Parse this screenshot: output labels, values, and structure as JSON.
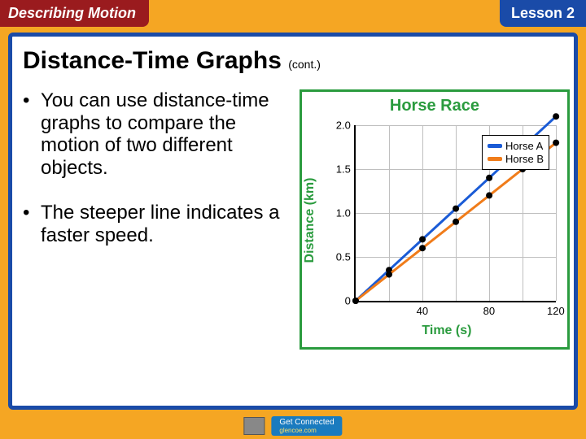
{
  "header": {
    "chapter_badge": "Describing Motion",
    "lesson_badge": "Lesson 2"
  },
  "slide": {
    "title": "Distance-Time Graphs",
    "title_suffix": "(cont.)",
    "bullets": [
      "You can use distance-time graphs to compare the motion of two different objects.",
      "The steeper line indicates a faster speed."
    ]
  },
  "chart": {
    "type": "line",
    "title": "Horse Race",
    "x_label": "Time (s)",
    "y_label": "Distance (km)",
    "xlim": [
      0,
      120
    ],
    "ylim": [
      0,
      2.0
    ],
    "x_ticks": [
      40,
      80,
      120
    ],
    "y_ticks": [
      0,
      0.5,
      1.0,
      1.5,
      2.0
    ],
    "grid_x": [
      20,
      40,
      60,
      80,
      100,
      120
    ],
    "grid_y": [
      0.5,
      1.0,
      1.5,
      2.0
    ],
    "grid_color": "#bfbfbf",
    "background_color": "#ffffff",
    "point_radius": 4,
    "line_width": 3,
    "series": [
      {
        "name": "Horse A",
        "color": "#1a5bd6",
        "points": [
          [
            0,
            0
          ],
          [
            20,
            0.35
          ],
          [
            40,
            0.7
          ],
          [
            60,
            1.05
          ],
          [
            80,
            1.4
          ],
          [
            100,
            1.75
          ],
          [
            120,
            2.1
          ]
        ]
      },
      {
        "name": "Horse B",
        "color": "#f07c1a",
        "points": [
          [
            0,
            0
          ],
          [
            20,
            0.3
          ],
          [
            40,
            0.6
          ],
          [
            60,
            0.9
          ],
          [
            80,
            1.2
          ],
          [
            100,
            1.5
          ],
          [
            120,
            1.8
          ]
        ]
      }
    ],
    "legend": {
      "position": "top-right",
      "items": [
        "Horse A",
        "Horse B"
      ]
    }
  },
  "footer": {
    "connect_label": "Get Connected",
    "connect_url": "glencoe.com"
  },
  "colors": {
    "frame_orange": "#f5a623",
    "frame_blue": "#1a4ba8",
    "badge_red": "#9a1b1e",
    "chart_green": "#2a9b3e"
  }
}
